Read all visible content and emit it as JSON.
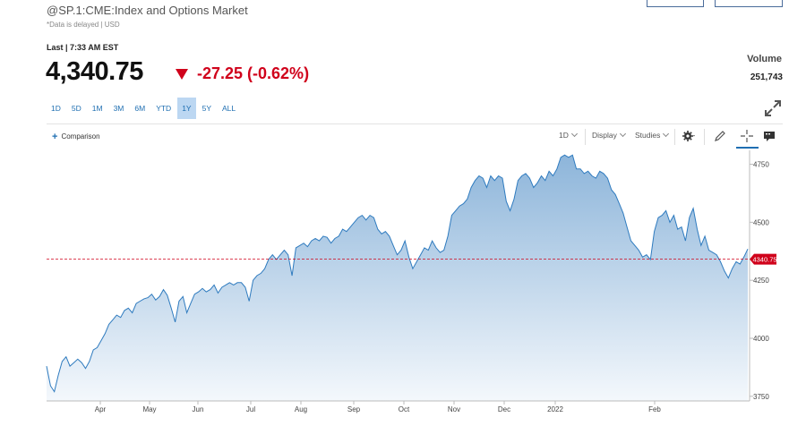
{
  "header": {
    "title": "@SP.1:CME:Index and Options Market",
    "delayed_note": "*Data is delayed | USD",
    "last_label": "Last | 7:33 AM EST",
    "price": "4,340.75",
    "change": "-27.25 (-0.62%)"
  },
  "volume": {
    "label": "Volume",
    "value": "251,743"
  },
  "ranges": [
    "1D",
    "5D",
    "1M",
    "3M",
    "6M",
    "YTD",
    "1Y",
    "5Y",
    "ALL"
  ],
  "active_range": "1Y",
  "toolbar": {
    "comparison": "Comparison",
    "interval": "1D",
    "display": "Display",
    "studies": "Studies"
  },
  "icons": [
    "expand-icon",
    "gear-icon",
    "pencil-icon",
    "crosshair-icon",
    "chat-icon",
    "down-arrow-icon"
  ],
  "colors": {
    "line": "#2f7bbf",
    "fill_top": "#8db5da",
    "fill_bottom": "#f4f8fc",
    "negative": "#d0021b",
    "accent": "#1f6fb2"
  },
  "chart_data": {
    "type": "area",
    "x_labels": [
      "Apr",
      "May",
      "Jun",
      "Jul",
      "Aug",
      "Sep",
      "Oct",
      "Nov",
      "Dec",
      "2022",
      "Feb"
    ],
    "y_ticks": [
      3750,
      4000,
      4250,
      4500,
      4750
    ],
    "ylim": [
      3730,
      4810
    ],
    "last_value_label": "4340.75",
    "last_value": 4340.75,
    "grid": false,
    "series": [
      {
        "values": [
          3880,
          3795,
          3770,
          3840,
          3900,
          3920,
          3880,
          3895,
          3910,
          3895,
          3870,
          3900,
          3950,
          3960,
          3990,
          4020,
          4060,
          4080,
          4100,
          4090,
          4120,
          4130,
          4110,
          4150,
          4160,
          4170,
          4175,
          4190,
          4165,
          4180,
          4210,
          4185,
          4130,
          4070,
          4160,
          4180,
          4110,
          4150,
          4190,
          4200,
          4215,
          4200,
          4210,
          4230,
          4195,
          4220,
          4230,
          4240,
          4230,
          4240,
          4240,
          4220,
          4160,
          4250,
          4270,
          4280,
          4300,
          4340,
          4360,
          4340,
          4360,
          4380,
          4360,
          4270,
          4390,
          4400,
          4410,
          4395,
          4420,
          4430,
          4420,
          4440,
          4435,
          4410,
          4430,
          4440,
          4470,
          4460,
          4480,
          4500,
          4520,
          4530,
          4510,
          4530,
          4520,
          4470,
          4450,
          4460,
          4440,
          4400,
          4360,
          4380,
          4420,
          4350,
          4300,
          4330,
          4360,
          4390,
          4380,
          4420,
          4390,
          4370,
          4380,
          4440,
          4530,
          4550,
          4570,
          4580,
          4600,
          4650,
          4680,
          4700,
          4690,
          4650,
          4700,
          4680,
          4700,
          4690,
          4590,
          4550,
          4600,
          4680,
          4700,
          4710,
          4690,
          4650,
          4670,
          4700,
          4680,
          4720,
          4700,
          4730,
          4780,
          4790,
          4780,
          4790,
          4730,
          4730,
          4710,
          4720,
          4700,
          4690,
          4720,
          4710,
          4690,
          4640,
          4620,
          4580,
          4540,
          4480,
          4420,
          4400,
          4380,
          4350,
          4360,
          4340,
          4460,
          4520,
          4530,
          4550,
          4500,
          4530,
          4470,
          4480,
          4420,
          4520,
          4560,
          4470,
          4400,
          4440,
          4380,
          4370,
          4360,
          4330,
          4290,
          4260,
          4300,
          4330,
          4320,
          4350,
          4385
        ]
      }
    ]
  }
}
